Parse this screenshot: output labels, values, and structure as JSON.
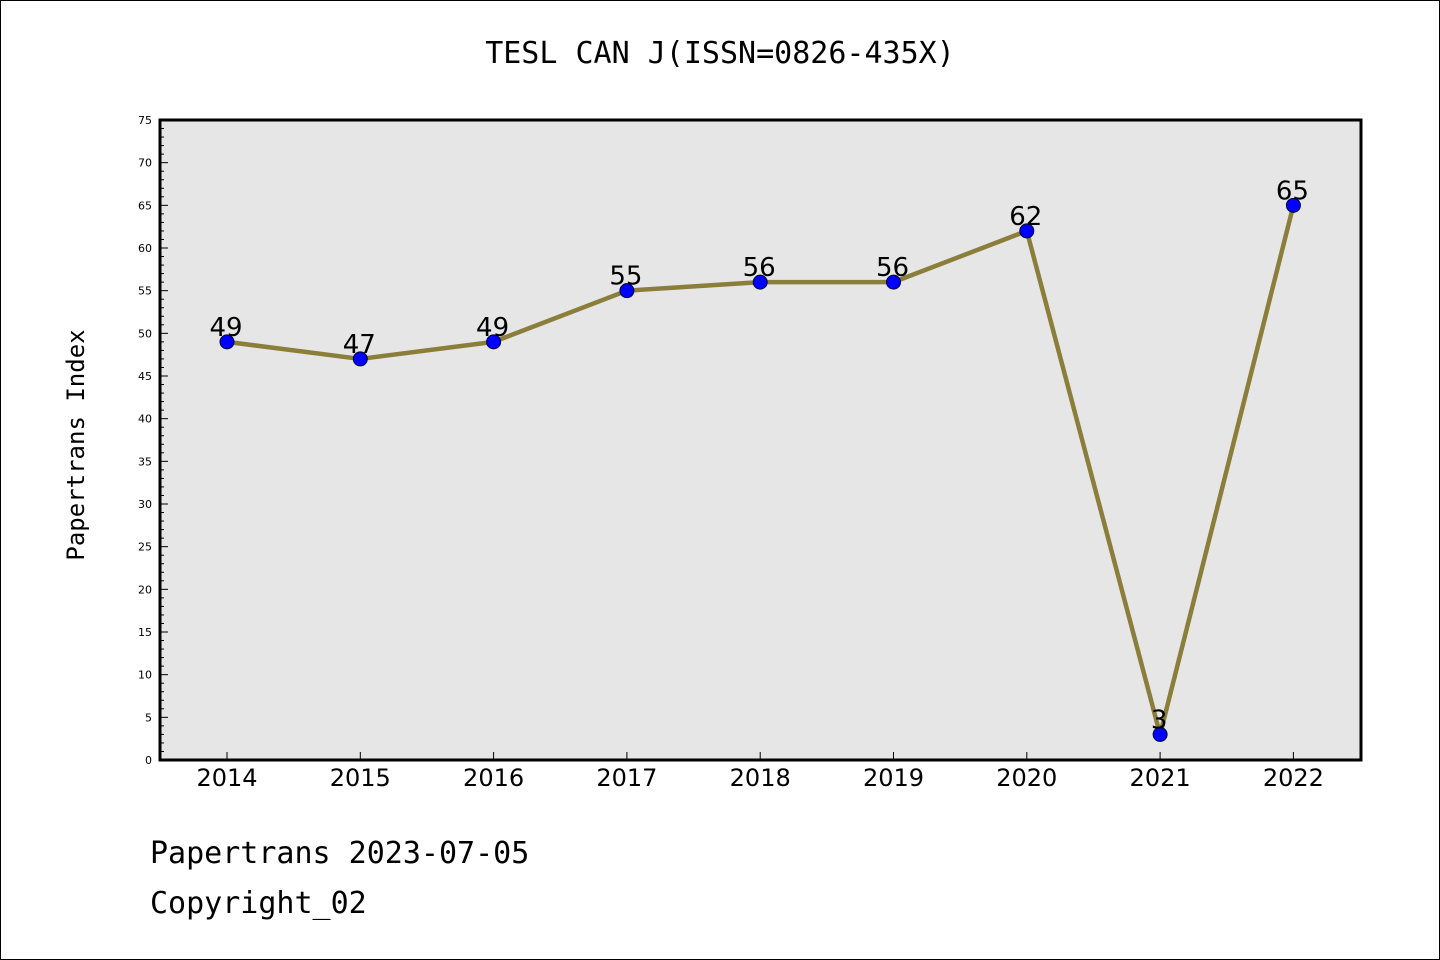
{
  "chart_data": {
    "type": "line",
    "title": "TESL CAN J(ISSN=0826-435X)",
    "xlabel": "",
    "ylabel": "Papertrans Index",
    "categories": [
      "2014",
      "2015",
      "2016",
      "2017",
      "2018",
      "2019",
      "2020",
      "2021",
      "2022"
    ],
    "values": [
      49,
      47,
      49,
      55,
      56,
      56,
      62,
      3,
      65
    ],
    "data_labels": [
      "49",
      "47",
      "49",
      "55",
      "56",
      "56",
      "62",
      "3",
      "65"
    ],
    "ylim": [
      0,
      75
    ],
    "yticks": [
      0,
      5,
      10,
      15,
      20,
      25,
      30,
      35,
      40,
      45,
      50,
      55,
      60,
      65,
      70,
      75
    ],
    "grid": false,
    "colors": {
      "line": "#8b7d3a",
      "marker": "#0000ff",
      "plot_background": "#e6e6e6"
    }
  },
  "footer": {
    "line1": "Papertrans 2023-07-05",
    "line2": "Copyright_02"
  }
}
